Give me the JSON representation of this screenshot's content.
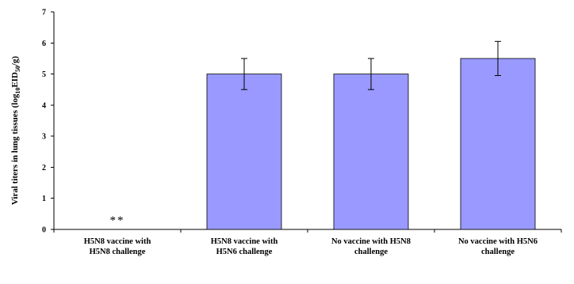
{
  "chart_data": {
    "type": "bar",
    "title": "",
    "xlabel": "",
    "ylabel": "Viral titers in lung tissues (log10EID50/g)",
    "ylabel_parts": {
      "prefix": "Viral titers in lung tissues (log",
      "sub1": "10",
      "mid": "EID",
      "sub2": "50",
      "suffix": "/g)"
    },
    "ylim": [
      0,
      7
    ],
    "yticks": [
      "0",
      "1",
      "2",
      "3",
      "4",
      "5",
      "6",
      "7"
    ],
    "categories": [
      [
        "H5N8 vaccine with",
        "H5N8 challenge"
      ],
      [
        "H5N8 vaccine with",
        "H5N6 challenge"
      ],
      [
        "No vaccine with  H5N8",
        "challenge"
      ],
      [
        "No vaccine with  H5N6",
        "challenge"
      ]
    ],
    "values": [
      0,
      5.0,
      5.0,
      5.5
    ],
    "errors": [
      0,
      0.5,
      0.5,
      0.55
    ],
    "annotations": [
      {
        "category_index": 0,
        "text": "**"
      }
    ],
    "bar_color": "#9999ff",
    "grid": false
  }
}
